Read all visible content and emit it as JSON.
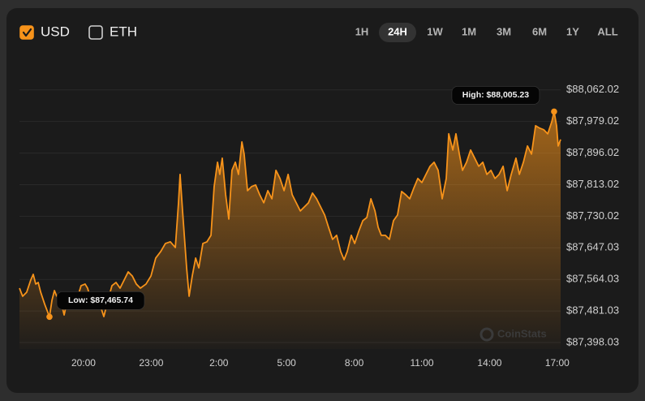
{
  "chart_data": {
    "type": "area",
    "color": "#f7931a",
    "currencies": [
      {
        "label": "USD",
        "checked": true
      },
      {
        "label": "ETH",
        "checked": false
      }
    ],
    "ranges": [
      "1H",
      "24H",
      "1W",
      "1M",
      "3M",
      "6M",
      "1Y",
      "ALL"
    ],
    "active_range": "24H",
    "watermark": "CoinStats",
    "grid": true,
    "xlim": [
      17.16,
      41.15
    ],
    "ylim": [
      87381,
      88085
    ],
    "xticks": [
      {
        "value": 20,
        "label": "20:00"
      },
      {
        "value": 23,
        "label": "23:00"
      },
      {
        "value": 26,
        "label": "2:00"
      },
      {
        "value": 29,
        "label": "5:00"
      },
      {
        "value": 32,
        "label": "8:00"
      },
      {
        "value": 35,
        "label": "11:00"
      },
      {
        "value": 38,
        "label": "14:00"
      },
      {
        "value": 41,
        "label": "17:00"
      }
    ],
    "yticks": [
      {
        "value": 87398.03,
        "label": "$87,398.03"
      },
      {
        "value": 87481.03,
        "label": "$87,481.03"
      },
      {
        "value": 87564.03,
        "label": "$87,564.03"
      },
      {
        "value": 87647.03,
        "label": "$87,647.03"
      },
      {
        "value": 87730.02,
        "label": "$87,730.02"
      },
      {
        "value": 87813.02,
        "label": "$87,813.02"
      },
      {
        "value": 87896.02,
        "label": "$87,896.02"
      },
      {
        "value": 87979.02,
        "label": "$87,979.02"
      },
      {
        "value": 88062.02,
        "label": "$88,062.02"
      }
    ],
    "annotations": [
      {
        "text": "High: $88,005.23",
        "x": 40.86,
        "y": 88005.23,
        "side": "left"
      },
      {
        "text": "Low: $87,465.74",
        "x": 18.49,
        "y": 87465.74,
        "side": "right"
      }
    ],
    "x": [
      17.16,
      17.3,
      17.48,
      17.66,
      17.77,
      17.88,
      17.99,
      18.1,
      18.28,
      18.49,
      18.6,
      18.71,
      18.81,
      18.99,
      19.14,
      19.28,
      19.46,
      19.61,
      19.75,
      19.89,
      20.07,
      20.18,
      20.33,
      20.51,
      20.69,
      20.9,
      21.08,
      21.26,
      21.44,
      21.62,
      21.8,
      21.98,
      22.16,
      22.34,
      22.52,
      22.77,
      22.99,
      23.2,
      23.42,
      23.63,
      23.85,
      24.07,
      24.21,
      24.28,
      24.39,
      24.57,
      24.68,
      24.82,
      24.97,
      25.11,
      25.29,
      25.47,
      25.65,
      25.79,
      25.94,
      26.04,
      26.15,
      26.3,
      26.44,
      26.58,
      26.73,
      26.87,
      27.02,
      27.12,
      27.27,
      27.45,
      27.63,
      27.81,
      27.99,
      28.17,
      28.35,
      28.53,
      28.71,
      28.89,
      29.07,
      29.25,
      29.43,
      29.61,
      29.79,
      29.97,
      30.15,
      30.33,
      30.51,
      30.69,
      30.86,
      31.04,
      31.22,
      31.4,
      31.55,
      31.69,
      31.87,
      32.02,
      32.2,
      32.38,
      32.56,
      32.74,
      32.92,
      33.06,
      33.2,
      33.38,
      33.56,
      33.74,
      33.92,
      34.1,
      34.28,
      34.46,
      34.64,
      34.82,
      35.0,
      35.18,
      35.36,
      35.54,
      35.72,
      35.9,
      36.08,
      36.19,
      36.37,
      36.51,
      36.66,
      36.8,
      36.98,
      37.16,
      37.34,
      37.52,
      37.7,
      37.88,
      38.06,
      38.24,
      38.42,
      38.6,
      38.78,
      38.96,
      39.17,
      39.32,
      39.5,
      39.68,
      39.86,
      40.04,
      40.22,
      40.4,
      40.58,
      40.76,
      40.86,
      40.97,
      41.04,
      41.15
    ],
    "values": [
      87541.0,
      87519.7,
      87530.4,
      87562.4,
      87577.4,
      87551.8,
      87556.0,
      87530.4,
      87498.4,
      87465.74,
      87509.1,
      87534.7,
      87519.7,
      87509.1,
      87470.6,
      87509.1,
      87526.1,
      87504.8,
      87519.7,
      87547.5,
      87551.8,
      87541.0,
      87509.1,
      87519.7,
      87504.8,
      87466.4,
      87509.1,
      87547.5,
      87556.0,
      87541.0,
      87562.4,
      87583.8,
      87573.1,
      87551.8,
      87541.0,
      87551.8,
      87573.1,
      87620.1,
      87637.1,
      87658.5,
      87662.8,
      87647.8,
      87765.3,
      87840.0,
      87743.9,
      87594.4,
      87519.7,
      87573.1,
      87620.1,
      87594.4,
      87658.5,
      87662.8,
      87679.9,
      87808.0,
      87872.0,
      87840.0,
      87882.7,
      87786.6,
      87722.6,
      87850.7,
      87872.0,
      87840.0,
      87925.4,
      87893.4,
      87797.3,
      87808.0,
      87812.2,
      87786.6,
      87765.3,
      87797.3,
      87775.9,
      87850.7,
      87829.3,
      87797.3,
      87840.0,
      87786.6,
      87765.3,
      87743.9,
      87754.6,
      87765.3,
      87790.9,
      87775.9,
      87754.6,
      87733.2,
      87701.2,
      87669.2,
      87679.9,
      87637.1,
      87615.8,
      87637.1,
      87679.9,
      87658.5,
      87690.5,
      87718.3,
      87726.8,
      87775.9,
      87743.9,
      87701.2,
      87679.9,
      87679.9,
      87669.2,
      87718.3,
      87733.2,
      87795.1,
      87786.6,
      87775.9,
      87803.7,
      87829.3,
      87818.6,
      87840.0,
      87861.3,
      87872.0,
      87850.7,
      87775.9,
      87829.3,
      87946.7,
      87904.0,
      87946.7,
      87893.4,
      87850.7,
      87872.0,
      87904.0,
      87882.7,
      87861.3,
      87872.0,
      87840.0,
      87850.7,
      87829.3,
      87840.0,
      87861.3,
      87797.3,
      87840.0,
      87882.7,
      87840.0,
      87872.0,
      87914.7,
      87893.4,
      87968.0,
      87961.6,
      87957.4,
      87946.7,
      87978.7,
      88005.23,
      87968.0,
      87914.7,
      87931.8
    ]
  }
}
